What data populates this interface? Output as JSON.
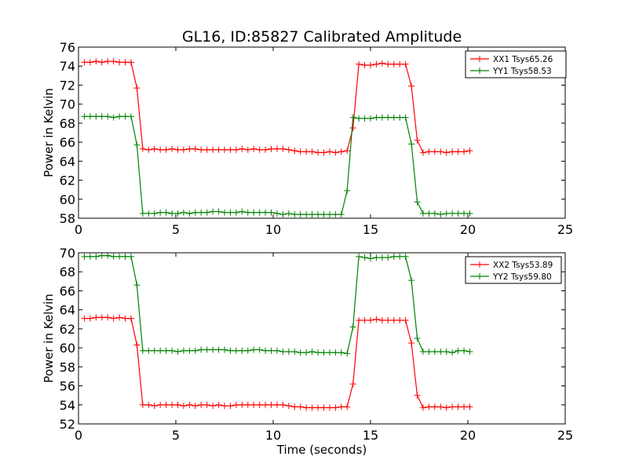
{
  "figure": {
    "title": "GL16, ID:85827 Calibrated Amplitude",
    "xlabel": "Time (seconds)"
  },
  "chart_data": [
    {
      "type": "line",
      "ylabel": "Power in Kelvin",
      "xlim": [
        0,
        25
      ],
      "ylim": [
        58,
        76
      ],
      "x_ticks": [
        "0",
        "5",
        "10",
        "15",
        "20",
        "25"
      ],
      "y_ticks": [
        "58",
        "60",
        "62",
        "64",
        "66",
        "68",
        "70",
        "72",
        "74",
        "76"
      ],
      "grid": false,
      "legend_position": "top-right",
      "x": [
        0.3,
        0.6,
        0.9,
        1.2,
        1.5,
        1.8,
        2.1,
        2.4,
        2.7,
        3.0,
        3.3,
        3.6,
        3.9,
        4.2,
        4.5,
        4.8,
        5.1,
        5.4,
        5.7,
        6.0,
        6.3,
        6.6,
        6.9,
        7.2,
        7.5,
        7.8,
        8.1,
        8.4,
        8.7,
        9.0,
        9.3,
        9.6,
        9.9,
        10.2,
        10.5,
        10.8,
        11.1,
        11.4,
        11.7,
        12.0,
        12.3,
        12.6,
        12.9,
        13.2,
        13.5,
        13.8,
        14.1,
        14.4,
        14.7,
        15.0,
        15.3,
        15.6,
        15.9,
        16.2,
        16.5,
        16.8,
        17.1,
        17.4,
        17.7,
        18.0,
        18.3,
        18.6,
        18.9,
        19.2,
        19.5,
        19.8,
        20.1
      ],
      "series": [
        {
          "name": "XX1 Tsys65.26",
          "color": "#ff0000",
          "values": [
            74.4,
            74.4,
            74.5,
            74.4,
            74.5,
            74.5,
            74.4,
            74.4,
            74.4,
            71.7,
            65.3,
            65.2,
            65.3,
            65.2,
            65.2,
            65.3,
            65.2,
            65.2,
            65.3,
            65.3,
            65.2,
            65.2,
            65.2,
            65.2,
            65.2,
            65.2,
            65.2,
            65.3,
            65.2,
            65.3,
            65.2,
            65.2,
            65.3,
            65.3,
            65.3,
            65.2,
            65.1,
            65.0,
            65.0,
            65.0,
            64.9,
            64.9,
            65.0,
            64.9,
            65.0,
            65.1,
            67.5,
            74.2,
            74.1,
            74.1,
            74.2,
            74.3,
            74.2,
            74.2,
            74.2,
            74.2,
            71.9,
            66.2,
            64.9,
            65.0,
            65.0,
            65.0,
            64.9,
            65.0,
            65.0,
            65.0,
            65.1
          ]
        },
        {
          "name": "YY1 Tsys58.53",
          "color": "#008000",
          "values": [
            68.7,
            68.7,
            68.7,
            68.7,
            68.7,
            68.6,
            68.7,
            68.7,
            68.7,
            65.7,
            58.5,
            58.5,
            58.5,
            58.6,
            58.6,
            58.5,
            58.5,
            58.6,
            58.5,
            58.6,
            58.6,
            58.6,
            58.7,
            58.7,
            58.6,
            58.6,
            58.6,
            58.7,
            58.6,
            58.6,
            58.6,
            58.6,
            58.6,
            58.5,
            58.4,
            58.5,
            58.4,
            58.4,
            58.4,
            58.4,
            58.4,
            58.4,
            58.4,
            58.4,
            58.4,
            60.9,
            68.6,
            68.5,
            68.5,
            68.5,
            68.6,
            68.6,
            68.6,
            68.6,
            68.6,
            68.6,
            65.8,
            59.7,
            58.5,
            58.5,
            58.5,
            58.4,
            58.5,
            58.5,
            58.5,
            58.5,
            58.5
          ]
        }
      ]
    },
    {
      "type": "line",
      "ylabel": "Power in Kelvin",
      "xlabel": "Time (seconds)",
      "xlim": [
        0,
        25
      ],
      "ylim": [
        52,
        70
      ],
      "x_ticks": [
        "0",
        "5",
        "10",
        "15",
        "20",
        "25"
      ],
      "y_ticks": [
        "52",
        "54",
        "56",
        "58",
        "60",
        "62",
        "64",
        "66",
        "68",
        "70"
      ],
      "grid": false,
      "legend_position": "top-right",
      "x": [
        0.3,
        0.6,
        0.9,
        1.2,
        1.5,
        1.8,
        2.1,
        2.4,
        2.7,
        3.0,
        3.3,
        3.6,
        3.9,
        4.2,
        4.5,
        4.8,
        5.1,
        5.4,
        5.7,
        6.0,
        6.3,
        6.6,
        6.9,
        7.2,
        7.5,
        7.8,
        8.1,
        8.4,
        8.7,
        9.0,
        9.3,
        9.6,
        9.9,
        10.2,
        10.5,
        10.8,
        11.1,
        11.4,
        11.7,
        12.0,
        12.3,
        12.6,
        12.9,
        13.2,
        13.5,
        13.8,
        14.1,
        14.4,
        14.7,
        15.0,
        15.3,
        15.6,
        15.9,
        16.2,
        16.5,
        16.8,
        17.1,
        17.4,
        17.7,
        18.0,
        18.3,
        18.6,
        18.9,
        19.2,
        19.5,
        19.8,
        20.1
      ],
      "series": [
        {
          "name": "XX2 Tsys53.89",
          "color": "#ff0000",
          "values": [
            63.1,
            63.1,
            63.2,
            63.2,
            63.2,
            63.1,
            63.2,
            63.1,
            63.1,
            60.3,
            54.0,
            54.0,
            53.9,
            54.0,
            54.0,
            54.0,
            54.0,
            53.9,
            54.0,
            53.9,
            54.0,
            54.0,
            53.9,
            54.0,
            53.9,
            53.9,
            54.0,
            54.0,
            54.0,
            54.0,
            54.0,
            54.0,
            54.0,
            54.0,
            54.0,
            53.9,
            53.8,
            53.8,
            53.7,
            53.7,
            53.7,
            53.7,
            53.7,
            53.7,
            53.8,
            53.8,
            56.2,
            62.9,
            62.9,
            62.9,
            63.0,
            62.9,
            62.9,
            62.9,
            62.9,
            62.9,
            60.5,
            55.0,
            53.7,
            53.8,
            53.8,
            53.8,
            53.7,
            53.8,
            53.8,
            53.8,
            53.8
          ]
        },
        {
          "name": "YY2 Tsys59.80",
          "color": "#008000",
          "values": [
            69.6,
            69.6,
            69.6,
            69.7,
            69.7,
            69.6,
            69.6,
            69.6,
            69.6,
            66.6,
            59.7,
            59.7,
            59.7,
            59.7,
            59.7,
            59.7,
            59.6,
            59.7,
            59.7,
            59.7,
            59.8,
            59.8,
            59.8,
            59.8,
            59.8,
            59.7,
            59.7,
            59.7,
            59.7,
            59.8,
            59.8,
            59.7,
            59.7,
            59.7,
            59.6,
            59.6,
            59.6,
            59.5,
            59.5,
            59.6,
            59.5,
            59.5,
            59.5,
            59.5,
            59.5,
            59.4,
            62.2,
            69.6,
            69.5,
            69.4,
            69.5,
            69.5,
            69.5,
            69.6,
            69.6,
            69.6,
            67.1,
            61.0,
            59.6,
            59.6,
            59.6,
            59.6,
            59.6,
            59.5,
            59.7,
            59.7,
            59.6
          ]
        }
      ]
    }
  ]
}
